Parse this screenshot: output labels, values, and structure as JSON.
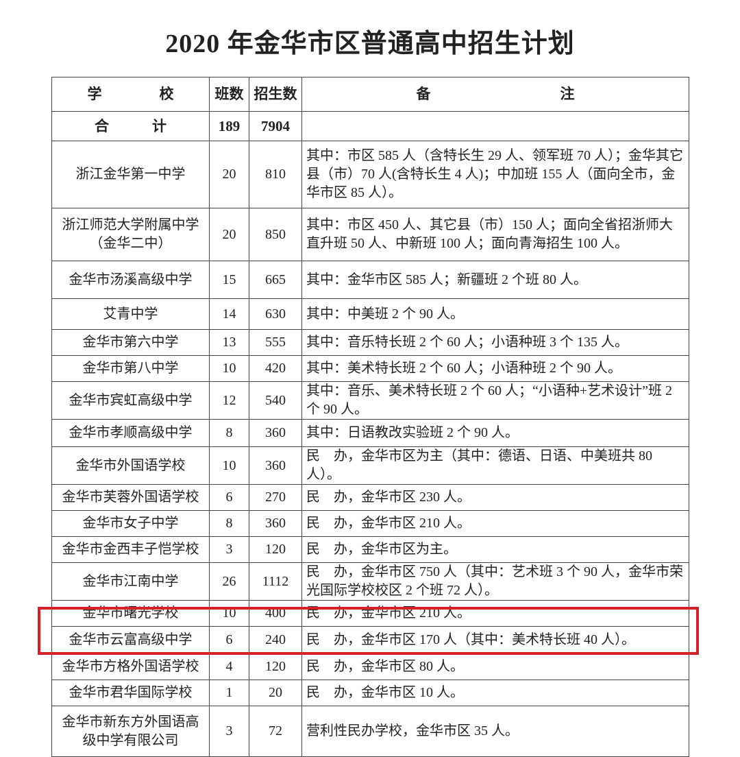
{
  "title": "2020 年金华市区普通高中招生计划",
  "header": {
    "school": "学　　　　校",
    "classes": "班数",
    "enrollment": "招生数",
    "notes": "备　　　　　　　　　注"
  },
  "total": {
    "label": "合　　　计",
    "classes": "189",
    "enrollment": "7904",
    "notes": ""
  },
  "rows": [
    {
      "school": "浙江金华第一中学",
      "classes": "20",
      "enrollment": "810",
      "notes": "其中：市区 585 人（含特长生 29 人、领军班 70 人）；金华其它县（市）70 人(含特长生 4 人)；中加班 155 人（面向全市，金华市区 85 人）。"
    },
    {
      "school": "浙江师范大学附属中学（金华二中）",
      "classes": "20",
      "enrollment": "850",
      "notes": "其中：市区 450 人、其它县（市）150 人；面向全省招浙师大直升班 50 人、中新班 100 人；面向青海招生 100 人。"
    },
    {
      "school": "金华市汤溪高级中学",
      "classes": "15",
      "enrollment": "665",
      "notes": "其中：金华市区 585 人；新疆班 2 个班 80 人。"
    },
    {
      "school": "艾青中学",
      "classes": "14",
      "enrollment": "630",
      "notes": "其中：中美班 2 个 90 人。"
    },
    {
      "school": "金华市第六中学",
      "classes": "13",
      "enrollment": "555",
      "notes": "其中：音乐特长班 2 个 60 人；小语种班 3 个 135 人。"
    },
    {
      "school": "金华市第八中学",
      "classes": "10",
      "enrollment": "420",
      "notes": "其中：美术特长班 2 个 60 人；小语种班 2 个 90 人。"
    },
    {
      "school": "金华市宾虹高级中学",
      "classes": "12",
      "enrollment": "540",
      "notes": "其中：音乐、美术特长班 2 个 60 人；“小语种+艺术设计”班 2 个 90 人。"
    },
    {
      "school": "金华市孝顺高级中学",
      "classes": "8",
      "enrollment": "360",
      "notes": "其中：日语教改实验班 2 个 90 人。"
    },
    {
      "school": "金华市外国语学校",
      "classes": "10",
      "enrollment": "360",
      "notes": "民　办，金华市区为主（其中：德语、日语、中美班共 80 人）。"
    },
    {
      "school": "金华市芙蓉外国语学校",
      "classes": "6",
      "enrollment": "270",
      "notes": "民　办，金华市区 230 人。"
    },
    {
      "school": "金华市女子中学",
      "classes": "8",
      "enrollment": "360",
      "notes": "民　办，金华市区 210 人。"
    },
    {
      "school": "金华市金西丰子恺学校",
      "classes": "3",
      "enrollment": "120",
      "notes": "民　办，金华市区为主。"
    },
    {
      "school": "金华市江南中学",
      "classes": "26",
      "enrollment": "1112",
      "notes": "民　办，金华市区 750 人（其中：艺术班 3 个 90 人，金华市荣光国际学校校区 2 个班 72 人）。"
    },
    {
      "school": "金华市曙光学校",
      "classes": "10",
      "enrollment": "400",
      "notes": "民　办，金华市区 210 人。"
    },
    {
      "school": "金华市云富高级中学",
      "classes": "6",
      "enrollment": "240",
      "notes": "民　办，金华市区 170 人（其中：美术特长班 40 人）。"
    },
    {
      "school": "金华市方格外国语学校",
      "classes": "4",
      "enrollment": "120",
      "notes": "民　办，金华市区 80 人。"
    },
    {
      "school": "金华市君华国际学校",
      "classes": "1",
      "enrollment": "20",
      "notes": "民　办，金华市区 10 人。"
    },
    {
      "school": "金华市新东方外国语高级中学有限公司",
      "classes": "3",
      "enrollment": "72",
      "notes": "营利性民办学校，金华市区 35 人。"
    }
  ],
  "highlight_color": "#d9202a"
}
